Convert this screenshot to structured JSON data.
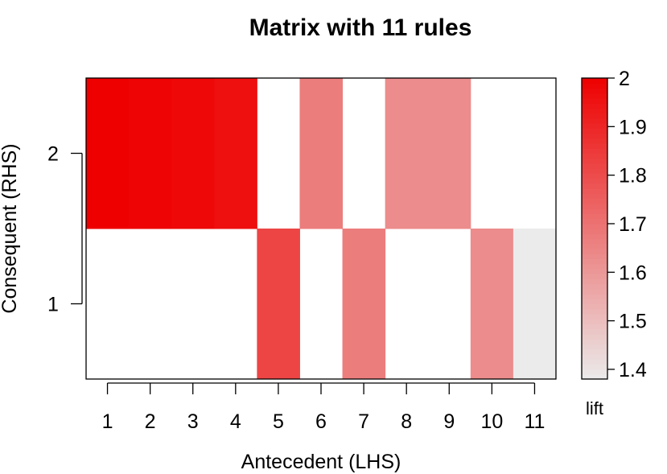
{
  "chart_data": {
    "type": "heatmap",
    "title": "Matrix with 11 rules",
    "xlabel": "Antecedent (LHS)",
    "ylabel": "Consequent (RHS)",
    "x_categories": [
      "1",
      "2",
      "3",
      "4",
      "5",
      "6",
      "7",
      "8",
      "9",
      "10",
      "11"
    ],
    "y_categories": [
      "1",
      "2"
    ],
    "cells": [
      {
        "x": "1",
        "y": "2",
        "value": 2.0
      },
      {
        "x": "2",
        "y": "2",
        "value": 1.99
      },
      {
        "x": "3",
        "y": "2",
        "value": 1.98
      },
      {
        "x": "4",
        "y": "2",
        "value": 1.96
      },
      {
        "x": "5",
        "y": "1",
        "value": 1.82
      },
      {
        "x": "6",
        "y": "2",
        "value": 1.67
      },
      {
        "x": "7",
        "y": "1",
        "value": 1.67
      },
      {
        "x": "8",
        "y": "2",
        "value": 1.63
      },
      {
        "x": "9",
        "y": "2",
        "value": 1.63
      },
      {
        "x": "10",
        "y": "1",
        "value": 1.63
      },
      {
        "x": "11",
        "y": "1",
        "value": 1.38
      }
    ],
    "colorbar": {
      "title": "lift",
      "ticks": [
        1.4,
        1.5,
        1.6,
        1.7,
        1.8,
        1.9,
        2
      ],
      "tick_labels": [
        "1.4",
        "1.5",
        "1.6",
        "1.7",
        "1.8",
        "1.9",
        "2"
      ],
      "range": [
        1.38,
        2.0
      ],
      "low_color": "#ebebeb",
      "high_color": "#ee0000"
    },
    "grid": false
  }
}
